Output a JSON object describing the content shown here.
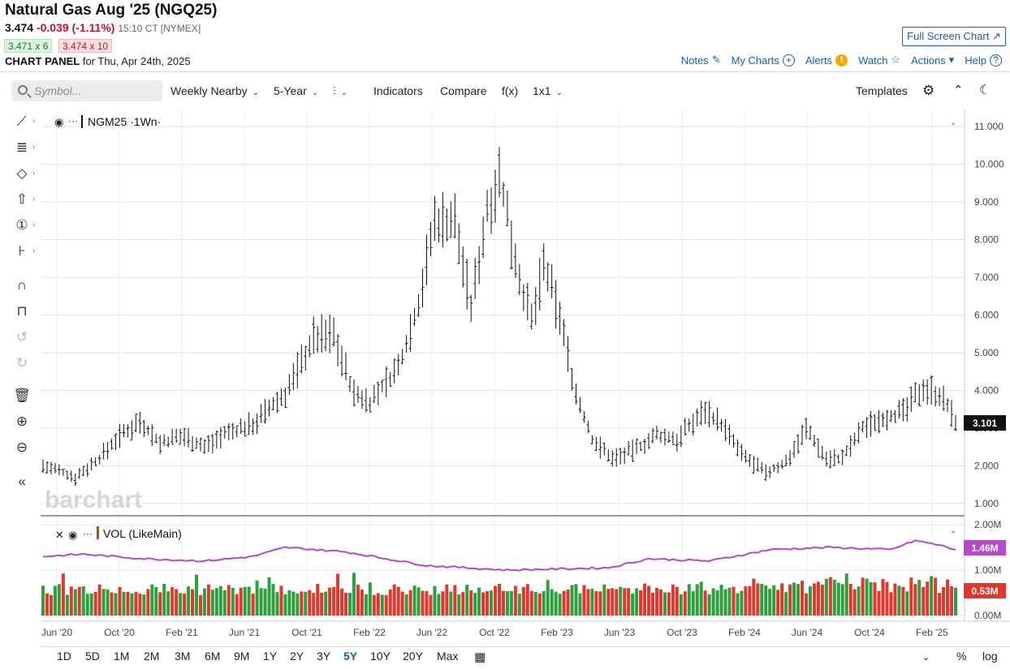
{
  "header": {
    "title": "Natural Gas Aug '25 (NGQ25)",
    "last": "3.474",
    "change": "-0.039 (-1.11%)",
    "time": "15:10 CT [NYMEX]",
    "bid": "3.471 x 6",
    "ask": "3.474 x 10",
    "panel_label": "CHART PANEL",
    "panel_date": "for Thu, Apr 24th, 2025",
    "fullscreen_label": "Full Screen Chart ↗"
  },
  "links": {
    "notes": "Notes",
    "my_charts": "My Charts",
    "alerts": "Alerts",
    "watch": "Watch",
    "actions": "Actions",
    "help": "Help"
  },
  "toolbar": {
    "search_placeholder": "Symbol...",
    "interval": "Weekly Nearby",
    "period": "5-Year",
    "indicators": "Indicators",
    "compare": "Compare",
    "fx": "f(x)",
    "layout": "1x1",
    "templates": "Templates"
  },
  "ranges": [
    "1D",
    "5D",
    "1M",
    "2M",
    "3M",
    "6M",
    "9M",
    "1Y",
    "2Y",
    "3Y",
    "5Y",
    "10Y",
    "20Y",
    "Max"
  ],
  "active_range": "5Y",
  "bottom_right": {
    "percent": "%",
    "log": "log"
  },
  "colors": {
    "price_bar": "#111111",
    "vol_up": "#2e9e3e",
    "vol_down": "#e0382c",
    "vol_avg": "#b44ac8",
    "link": "#1c5ea8"
  },
  "chart_data": {
    "type": "bar",
    "title": "NGM25 ·1Wn·",
    "watermark": "barchart",
    "price_axis": {
      "ticks": [
        "1.000",
        "2.000",
        "3.000",
        "4.000",
        "5.000",
        "6.000",
        "7.000",
        "8.000",
        "9.000",
        "10.000",
        "11.000"
      ],
      "ylim": [
        1.0,
        11.0
      ]
    },
    "last_price_label": "3.101",
    "last_price": 3.101,
    "x_ticks": [
      "Jun '20",
      "Oct '20",
      "Feb '21",
      "Jun '21",
      "Oct '21",
      "Feb '22",
      "Jun '22",
      "Oct '22",
      "Feb '23",
      "Jun '23",
      "Oct '23",
      "Feb '24",
      "Jun '24",
      "Oct '24",
      "Feb '25"
    ],
    "price_anchors": [
      {
        "x": 0,
        "y": 2.0
      },
      {
        "x": 8,
        "y": 1.7
      },
      {
        "x": 14,
        "y": 2.2
      },
      {
        "x": 18,
        "y": 2.7
      },
      {
        "x": 24,
        "y": 3.2
      },
      {
        "x": 29,
        "y": 2.6
      },
      {
        "x": 35,
        "y": 2.8
      },
      {
        "x": 40,
        "y": 2.5
      },
      {
        "x": 44,
        "y": 2.8
      },
      {
        "x": 52,
        "y": 3.1
      },
      {
        "x": 60,
        "y": 3.9
      },
      {
        "x": 67,
        "y": 5.4
      },
      {
        "x": 72,
        "y": 5.5
      },
      {
        "x": 77,
        "y": 3.9
      },
      {
        "x": 81,
        "y": 3.7
      },
      {
        "x": 88,
        "y": 4.6
      },
      {
        "x": 93,
        "y": 6.3
      },
      {
        "x": 97,
        "y": 8.5
      },
      {
        "x": 102,
        "y": 8.5
      },
      {
        "x": 106,
        "y": 6.2
      },
      {
        "x": 110,
        "y": 8.8
      },
      {
        "x": 113,
        "y": 9.7
      },
      {
        "x": 118,
        "y": 7.0
      },
      {
        "x": 121,
        "y": 5.8
      },
      {
        "x": 124,
        "y": 7.3
      },
      {
        "x": 128,
        "y": 6.0
      },
      {
        "x": 132,
        "y": 3.9
      },
      {
        "x": 136,
        "y": 2.7
      },
      {
        "x": 141,
        "y": 2.2
      },
      {
        "x": 146,
        "y": 2.4
      },
      {
        "x": 152,
        "y": 2.8
      },
      {
        "x": 157,
        "y": 2.7
      },
      {
        "x": 164,
        "y": 3.5
      },
      {
        "x": 168,
        "y": 3.1
      },
      {
        "x": 173,
        "y": 2.3
      },
      {
        "x": 179,
        "y": 1.8
      },
      {
        "x": 184,
        "y": 2.1
      },
      {
        "x": 189,
        "y": 3.0
      },
      {
        "x": 194,
        "y": 2.2
      },
      {
        "x": 198,
        "y": 2.2
      },
      {
        "x": 203,
        "y": 3.0
      },
      {
        "x": 208,
        "y": 3.3
      },
      {
        "x": 213,
        "y": 3.4
      },
      {
        "x": 218,
        "y": 4.1
      },
      {
        "x": 222,
        "y": 3.9
      },
      {
        "x": 226,
        "y": 3.2
      }
    ],
    "volume": {
      "series": [
        {
          "name": "VOL (LikeMain)",
          "last_label": "0.53M",
          "last": 0.53
        },
        {
          "name": "Avg",
          "last_label": "1.46M",
          "last": 1.46
        }
      ],
      "axis_ticks": [
        "0.00M",
        "1.00M",
        "2.00M"
      ],
      "ylim": [
        0,
        2.0
      ],
      "avg_anchors": [
        {
          "x": 0,
          "y": 1.3
        },
        {
          "x": 10,
          "y": 1.35
        },
        {
          "x": 25,
          "y": 1.25
        },
        {
          "x": 40,
          "y": 1.2
        },
        {
          "x": 52,
          "y": 1.3
        },
        {
          "x": 60,
          "y": 1.5
        },
        {
          "x": 75,
          "y": 1.4
        },
        {
          "x": 95,
          "y": 1.1
        },
        {
          "x": 115,
          "y": 1.0
        },
        {
          "x": 140,
          "y": 1.05
        },
        {
          "x": 150,
          "y": 1.25
        },
        {
          "x": 165,
          "y": 1.2
        },
        {
          "x": 180,
          "y": 1.45
        },
        {
          "x": 195,
          "y": 1.5
        },
        {
          "x": 210,
          "y": 1.45
        },
        {
          "x": 216,
          "y": 1.65
        },
        {
          "x": 222,
          "y": 1.55
        },
        {
          "x": 226,
          "y": 1.45
        }
      ]
    },
    "legend_sub": "VOL (LikeMain)"
  }
}
